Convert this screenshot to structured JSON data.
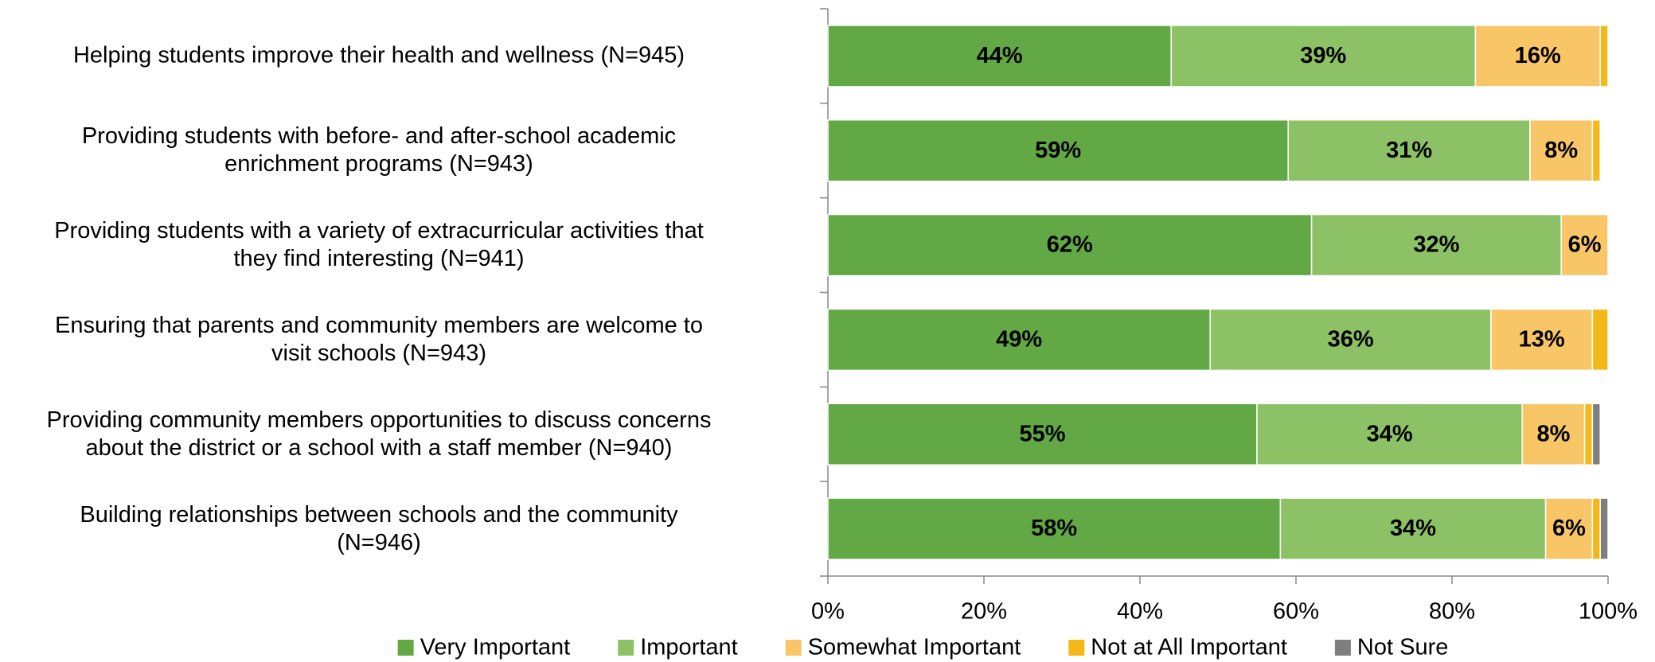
{
  "chart_data": {
    "type": "stacked-barh",
    "categories": [
      "Helping students improve their health and wellness (N=945)",
      "Providing students with before- and after-school academic\nenrichment programs (N=943)",
      "Providing students with a variety of extracurricular activities that\nthey find interesting (N=941)",
      "Ensuring that parents and community members are welcome to\nvisit schools (N=943)",
      "Providing community members opportunities to discuss concerns\nabout the district or a school with a staff member (N=940)",
      "Building relationships between schools and the community\n(N=946)"
    ],
    "series": [
      {
        "name": "Very Important",
        "color": "#62a844",
        "values": [
          44,
          59,
          62,
          49,
          55,
          58
        ],
        "value_labels": [
          "44%",
          "59%",
          "62%",
          "49%",
          "55%",
          "58%"
        ]
      },
      {
        "name": "Important",
        "color": "#8cc265",
        "values": [
          39,
          31,
          32,
          36,
          34,
          34
        ],
        "value_labels": [
          "39%",
          "31%",
          "32%",
          "36%",
          "34%",
          "34%"
        ]
      },
      {
        "name": "Somewhat Important",
        "color": "#f8c567",
        "values": [
          16,
          8,
          6,
          13,
          8,
          6
        ],
        "value_labels": [
          "16%",
          "8%",
          "6%",
          "13%",
          "8%",
          "6%"
        ]
      },
      {
        "name": "Not at All Important",
        "color": "#f5b819",
        "values": [
          1,
          1,
          0,
          2,
          1,
          1
        ]
      },
      {
        "name": "Not Sure",
        "color": "#7f7f7f",
        "values": [
          0,
          0,
          0,
          0,
          1,
          1
        ]
      }
    ],
    "xlim": [
      0,
      100
    ],
    "xticks": [
      {
        "value": 0,
        "label": "0%"
      },
      {
        "value": 20,
        "label": "20%"
      },
      {
        "value": 40,
        "label": "40%"
      },
      {
        "value": 60,
        "label": "60%"
      },
      {
        "value": 80,
        "label": "80%"
      },
      {
        "value": 100,
        "label": "100%"
      }
    ],
    "legend": "bottom"
  }
}
